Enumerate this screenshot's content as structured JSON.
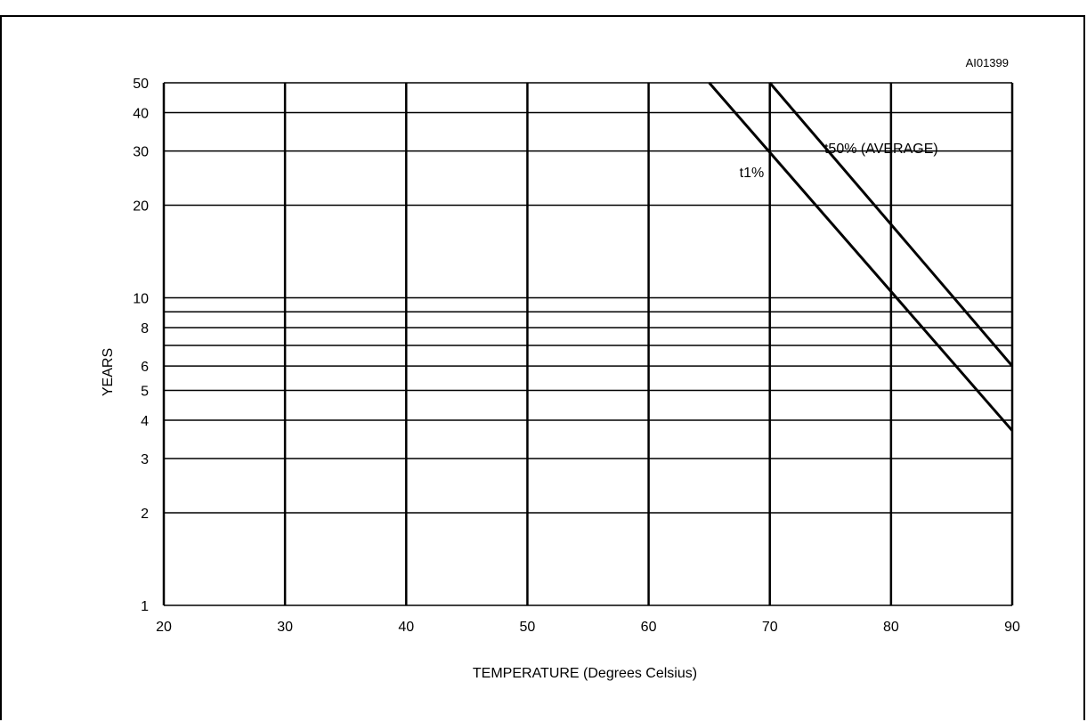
{
  "figure_caption": "",
  "chart_data": {
    "type": "line",
    "code": "AI01399",
    "xlabel": "TEMPERATURE (Degrees Celsius)",
    "ylabel": "YEARS",
    "xlim": [
      20,
      90
    ],
    "ylim": [
      1,
      50
    ],
    "yscale": "log",
    "grid": true,
    "x_ticks": [
      20,
      30,
      40,
      50,
      60,
      70,
      80,
      90
    ],
    "y_ticks": [
      1,
      2,
      3,
      4,
      5,
      6,
      7,
      8,
      9,
      10,
      20,
      30,
      40,
      50
    ],
    "y_tick_labels": [
      "1",
      "2",
      "3",
      "4",
      "5",
      "6",
      "",
      "8",
      "",
      "10",
      "20",
      "30",
      "40",
      "50"
    ],
    "series": [
      {
        "name": "t50% (AVERAGE)",
        "x": [
          70,
          90
        ],
        "y": [
          50,
          6
        ],
        "label_at": [
          74.5,
          30.5
        ]
      },
      {
        "name": "t1%",
        "x": [
          65,
          90
        ],
        "y": [
          50,
          3.7
        ],
        "label_at": [
          67.5,
          25.5
        ]
      }
    ]
  }
}
